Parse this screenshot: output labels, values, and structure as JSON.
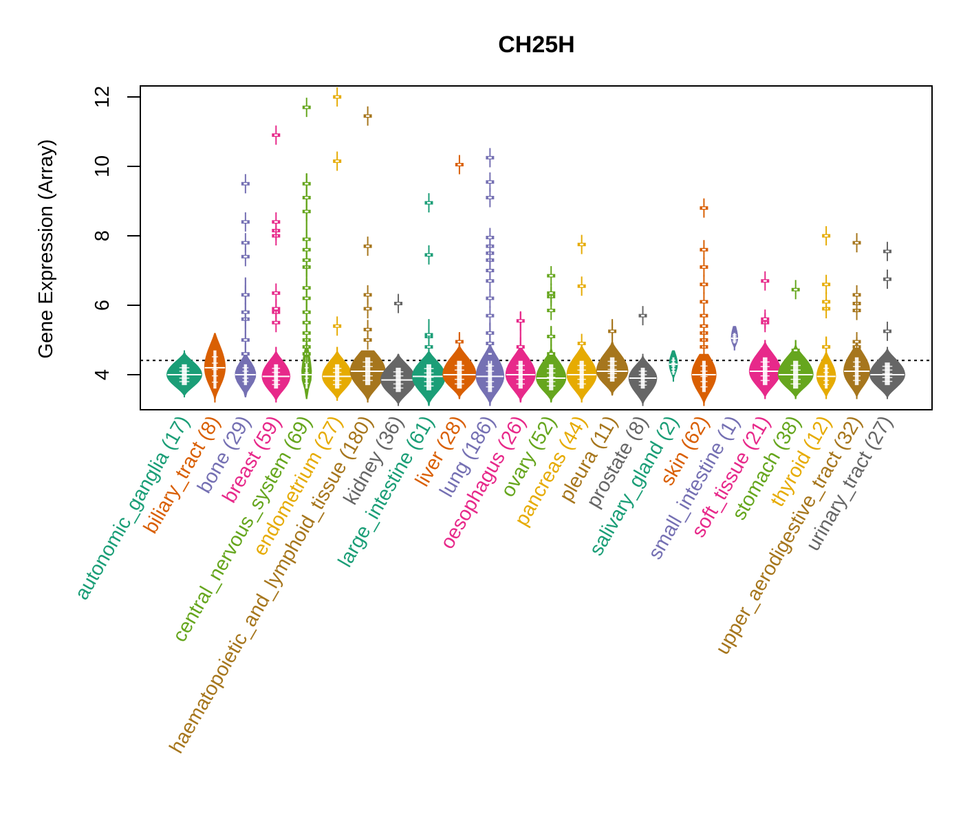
{
  "chart_data": {
    "type": "violin",
    "title": "CH25H",
    "xlabel": "",
    "ylabel": "Gene Expression (Array)",
    "ylim": [
      3.0,
      12.3
    ],
    "yticks": [
      4,
      6,
      8,
      10,
      12
    ],
    "grid": false,
    "reference_line": {
      "value": 4.41,
      "style": "dotted",
      "color": "#000000"
    },
    "categories": [
      {
        "name": "autonomic_ganglia",
        "n": 17,
        "label": "autonomic_ganglia (17)",
        "color": "#1B9E77",
        "min": 3.35,
        "q_low": 3.7,
        "median": 4.0,
        "q_high": 4.3,
        "max": 4.7,
        "width": 1.0,
        "outliers": []
      },
      {
        "name": "biliary_tract",
        "n": 8,
        "label": "biliary_tract (8)",
        "color": "#D95F02",
        "min": 3.2,
        "q_low": 3.6,
        "median": 4.2,
        "q_high": 4.7,
        "max": 5.2,
        "width": 0.6,
        "outliers": []
      },
      {
        "name": "bone",
        "n": 29,
        "label": "bone (29)",
        "color": "#7570B3",
        "min": 3.35,
        "q_low": 3.7,
        "median": 4.0,
        "q_high": 4.3,
        "max": 6.8,
        "width": 0.6,
        "outliers": [
          4.6,
          5.0,
          5.6,
          5.8,
          6.3,
          7.4,
          7.8,
          8.4,
          9.5
        ]
      },
      {
        "name": "breast",
        "n": 59,
        "label": "breast (59)",
        "color": "#E7298A",
        "min": 3.2,
        "q_low": 3.6,
        "median": 3.95,
        "q_high": 4.3,
        "max": 4.8,
        "width": 0.8,
        "outliers": [
          5.5,
          5.8,
          5.9,
          6.35,
          8.0,
          8.15,
          8.4,
          10.9
        ]
      },
      {
        "name": "central_nervous_system",
        "n": 69,
        "label": "central_nervous_system (69)",
        "color": "#66A61E",
        "min": 3.3,
        "q_low": 3.6,
        "median": 4.0,
        "q_high": 4.5,
        "max": 9.8,
        "width": 0.3,
        "outliers": [
          4.6,
          4.8,
          5.0,
          5.2,
          5.5,
          5.8,
          6.2,
          6.5,
          7.1,
          7.3,
          7.6,
          7.9,
          8.7,
          9.1,
          9.5,
          11.7
        ]
      },
      {
        "name": "endometrium",
        "n": 27,
        "label": "endometrium (27)",
        "color": "#E6AB02",
        "min": 3.25,
        "q_low": 3.6,
        "median": 3.95,
        "q_high": 4.3,
        "max": 4.8,
        "width": 0.85,
        "outliers": [
          5.4,
          10.15,
          12.0
        ]
      },
      {
        "name": "haematopoietic_and_lymphoid_tissue",
        "n": 180,
        "label": "haematopoietic_and_lymphoid_tissue (180)",
        "color": "#A6761D",
        "min": 3.2,
        "q_low": 3.7,
        "median": 4.1,
        "q_high": 4.5,
        "max": 4.7,
        "width": 1.0,
        "outliers": [
          5.0,
          5.3,
          5.9,
          6.3,
          7.7,
          11.45
        ]
      },
      {
        "name": "kidney",
        "n": 36,
        "label": "kidney (36)",
        "color": "#666666",
        "min": 3.1,
        "q_low": 3.5,
        "median": 3.85,
        "q_high": 4.2,
        "max": 4.6,
        "width": 1.0,
        "outliers": [
          6.05
        ]
      },
      {
        "name": "large_intestine",
        "n": 61,
        "label": "large_intestine (61)",
        "color": "#1B9E77",
        "min": 3.1,
        "q_low": 3.55,
        "median": 3.95,
        "q_high": 4.3,
        "max": 5.6,
        "width": 0.95,
        "outliers": [
          4.8,
          5.1,
          5.15,
          7.45,
          8.95
        ]
      },
      {
        "name": "liver",
        "n": 28,
        "label": "liver (28)",
        "color": "#D95F02",
        "min": 3.3,
        "q_low": 3.6,
        "median": 4.0,
        "q_high": 4.4,
        "max": 5.2,
        "width": 0.95,
        "outliers": [
          4.95,
          10.05
        ]
      },
      {
        "name": "lung",
        "n": 186,
        "label": "lung (186)",
        "color": "#7570B3",
        "min": 3.1,
        "q_low": 3.5,
        "median": 3.95,
        "q_high": 4.4,
        "max": 5.5,
        "width": 0.8,
        "outliers": [
          4.6,
          4.9,
          5.2,
          5.7,
          6.2,
          6.7,
          7.0,
          7.3,
          7.5,
          7.7,
          7.95,
          9.1,
          9.55,
          10.25
        ]
      },
      {
        "name": "oesophagus",
        "n": 26,
        "label": "oesophagus (26)",
        "color": "#E7298A",
        "min": 3.2,
        "q_low": 3.6,
        "median": 4.0,
        "q_high": 4.4,
        "max": 5.8,
        "width": 0.85,
        "outliers": [
          4.8,
          5.55
        ]
      },
      {
        "name": "ovary",
        "n": 52,
        "label": "ovary (52)",
        "color": "#66A61E",
        "min": 3.2,
        "q_low": 3.55,
        "median": 3.9,
        "q_high": 4.3,
        "max": 5.4,
        "width": 0.85,
        "outliers": [
          4.6,
          5.1,
          5.85,
          6.25,
          6.35,
          6.85
        ]
      },
      {
        "name": "pancreas",
        "n": 44,
        "label": "pancreas (44)",
        "color": "#E6AB02",
        "min": 3.2,
        "q_low": 3.6,
        "median": 4.0,
        "q_high": 4.4,
        "max": 4.9,
        "width": 0.85,
        "outliers": [
          4.9,
          6.55,
          7.75
        ]
      },
      {
        "name": "pleura",
        "n": 11,
        "label": "pleura (11)",
        "color": "#A6761D",
        "min": 3.4,
        "q_low": 3.8,
        "median": 4.1,
        "q_high": 4.5,
        "max": 5.6,
        "width": 0.9,
        "outliers": [
          5.25
        ]
      },
      {
        "name": "prostate",
        "n": 8,
        "label": "prostate (8)",
        "color": "#666666",
        "min": 3.1,
        "q_low": 3.6,
        "median": 3.9,
        "q_high": 4.2,
        "max": 4.6,
        "width": 0.8,
        "outliers": [
          5.7
        ]
      },
      {
        "name": "salivary_gland",
        "n": 2,
        "label": "salivary_gland (2)",
        "color": "#1B9E77",
        "min": 3.8,
        "q_low": 4.0,
        "median": 4.3,
        "q_high": 4.5,
        "max": 4.7,
        "width": 0.25,
        "outliers": []
      },
      {
        "name": "skin",
        "n": 62,
        "label": "skin (62)",
        "color": "#D95F02",
        "min": 3.1,
        "q_low": 3.5,
        "median": 4.0,
        "q_high": 4.4,
        "max": 4.6,
        "width": 0.7,
        "outliers": [
          4.8,
          5.0,
          5.2,
          5.4,
          5.7,
          6.1,
          6.6,
          7.1,
          7.6,
          8.8
        ]
      },
      {
        "name": "small_intestine",
        "n": 1,
        "label": "small_intestine (1)",
        "color": "#7570B3",
        "min": 4.7,
        "q_low": 4.9,
        "median": 5.05,
        "q_high": 5.2,
        "max": 5.4,
        "width": 0.2,
        "outliers": []
      },
      {
        "name": "soft_tissue",
        "n": 21,
        "label": "soft_tissue (21)",
        "color": "#E7298A",
        "min": 3.3,
        "q_low": 3.7,
        "median": 4.1,
        "q_high": 4.5,
        "max": 5.0,
        "width": 0.9,
        "outliers": [
          5.5,
          5.6,
          6.7
        ]
      },
      {
        "name": "stomach",
        "n": 38,
        "label": "stomach (38)",
        "color": "#66A61E",
        "min": 3.3,
        "q_low": 3.6,
        "median": 4.0,
        "q_high": 4.4,
        "max": 5.0,
        "width": 1.0,
        "outliers": [
          4.7,
          6.45
        ]
      },
      {
        "name": "thyroid",
        "n": 12,
        "label": "thyroid (12)",
        "color": "#E6AB02",
        "min": 3.3,
        "q_low": 3.6,
        "median": 3.95,
        "q_high": 4.3,
        "max": 5.1,
        "width": 0.55,
        "outliers": [
          4.8,
          5.9,
          6.1,
          6.6,
          8.0
        ]
      },
      {
        "name": "upper_aerodigestive_tract",
        "n": 32,
        "label": "upper_aerodigestive_tract (32)",
        "color": "#A6761D",
        "min": 3.3,
        "q_low": 3.7,
        "median": 4.1,
        "q_high": 4.5,
        "max": 5.0,
        "width": 0.75,
        "outliers": [
          4.8,
          4.95,
          5.85,
          6.05,
          6.3,
          7.8
        ]
      },
      {
        "name": "urinary_tract",
        "n": 27,
        "label": "urinary_tract (27)",
        "color": "#666666",
        "min": 3.3,
        "q_low": 3.7,
        "median": 4.0,
        "q_high": 4.35,
        "max": 4.8,
        "width": 1.0,
        "outliers": [
          5.25,
          6.75,
          7.55
        ]
      }
    ]
  }
}
